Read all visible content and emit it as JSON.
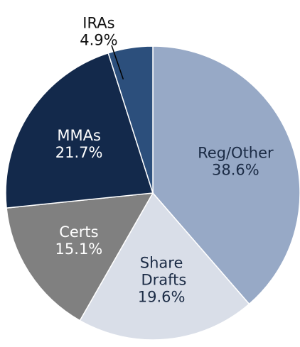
{
  "chart_data": {
    "type": "pie",
    "categories": [
      "Reg/Other",
      "Share Drafts",
      "Certs",
      "MMAs",
      "IRAs"
    ],
    "values": [
      38.6,
      19.6,
      15.1,
      21.7,
      4.9
    ],
    "value_labels": [
      "38.6%",
      "19.6%",
      "15.1%",
      "21.7%",
      "4.9%"
    ],
    "colors": [
      "#97a9c6",
      "#d9dee8",
      "#808080",
      "#13294b",
      "#2c4f7c"
    ]
  }
}
